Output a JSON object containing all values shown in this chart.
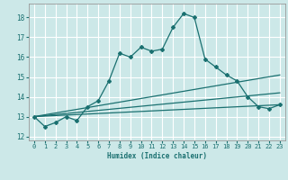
{
  "title": "",
  "xlabel": "Humidex (Indice chaleur)",
  "bg_color": "#cce8e8",
  "grid_color": "#ffffff",
  "line_color": "#1a7070",
  "xlim": [
    -0.5,
    23.5
  ],
  "ylim": [
    11.8,
    18.7
  ],
  "yticks": [
    12,
    13,
    14,
    15,
    16,
    17,
    18
  ],
  "xticks": [
    0,
    1,
    2,
    3,
    4,
    5,
    6,
    7,
    8,
    9,
    10,
    11,
    12,
    13,
    14,
    15,
    16,
    17,
    18,
    19,
    20,
    21,
    22,
    23
  ],
  "curve1_x": [
    0,
    1,
    2,
    3,
    4,
    5,
    6,
    7,
    8,
    9,
    10,
    11,
    12,
    13,
    14,
    15,
    16,
    17,
    18,
    19,
    20,
    21,
    22,
    23
  ],
  "curve1_y": [
    13.0,
    12.5,
    12.7,
    13.0,
    12.8,
    13.5,
    13.8,
    14.8,
    16.2,
    16.0,
    16.5,
    16.3,
    16.4,
    17.5,
    18.2,
    18.0,
    15.9,
    15.5,
    15.1,
    14.8,
    14.0,
    13.5,
    13.4,
    13.6
  ],
  "line2_x": [
    0,
    23
  ],
  "line2_y": [
    13.0,
    15.1
  ],
  "line3_x": [
    0,
    23
  ],
  "line3_y": [
    13.0,
    14.2
  ],
  "line4_x": [
    0,
    23
  ],
  "line4_y": [
    13.0,
    13.6
  ]
}
